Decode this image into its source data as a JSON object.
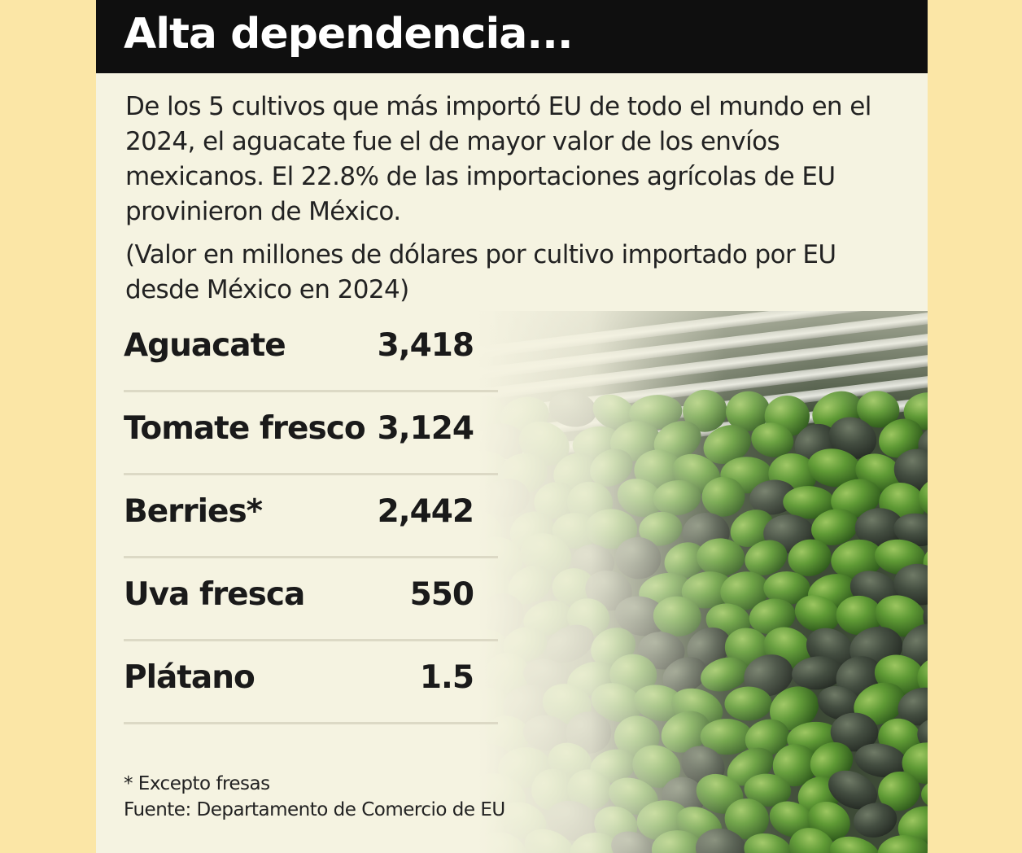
{
  "header": {
    "title": "Alta dependencia..."
  },
  "intro": {
    "text": "De los 5 cultivos que más importó EU de todo el mundo en el 2024, el aguacate fue el de mayor valor de los envíos mexicanos. El 22.8% de las importaciones agrícolas de EU provinieron de México.",
    "unit_note": "(Valor en millones de dólares por cultivo importado por EU desde México en 2024)"
  },
  "chart_data": {
    "type": "table",
    "title": "Alta dependencia...",
    "categories": [
      "Aguacate",
      "Tomate fresco",
      "Berries*",
      "Uva fresca",
      "Plátano"
    ],
    "values": [
      3418,
      3124,
      2442,
      550,
      1.5
    ],
    "value_labels": [
      "3,418",
      "3,124",
      "2,442",
      "550",
      "1.5"
    ],
    "unit": "millones de dólares"
  },
  "footer": {
    "footnote": "* Excepto fresas",
    "source": "Fuente: Departamento de Comercio de EU"
  },
  "colors": {
    "page_background": "#fbe6a6",
    "card_background": "#f5f3e1",
    "title_bar": "#0f0f0f",
    "avocado_green": "#5f9a35",
    "avocado_dark": "#3c4a3a"
  },
  "image": {
    "icon": "avocado-pile-photo"
  }
}
